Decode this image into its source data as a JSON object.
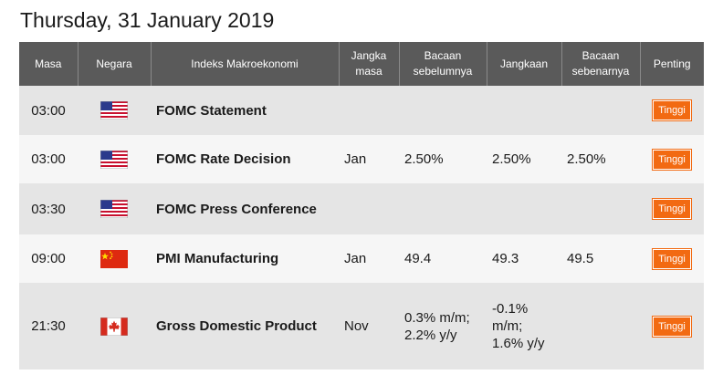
{
  "page": {
    "title": "Thursday, 31 January 2019"
  },
  "table": {
    "headers": {
      "time": "Masa",
      "country": "Negara",
      "event": "Indeks Makroekonomi",
      "period": "Jangka masa",
      "previous": "Bacaan sebelumnya",
      "forecast": "Jangkaan",
      "actual": "Bacaan sebenarnya",
      "importance": "Penting"
    },
    "rows": [
      {
        "time": "03:00",
        "flag": "us-flag-icon",
        "event": "FOMC Statement",
        "period": "",
        "previous": "",
        "forecast": "",
        "actual": "",
        "importance": "Tinggi"
      },
      {
        "time": "03:00",
        "flag": "us-flag-icon",
        "event": "FOMC Rate Decision",
        "period": "Jan",
        "previous": "2.50%",
        "forecast": "2.50%",
        "actual": "2.50%",
        "importance": "Tinggi"
      },
      {
        "time": "03:30",
        "flag": "us-flag-icon",
        "event": "FOMC Press Conference",
        "period": "",
        "previous": "",
        "forecast": "",
        "actual": "",
        "importance": "Tinggi"
      },
      {
        "time": "09:00",
        "flag": "china-flag-icon",
        "event": "PMI Manufacturing",
        "period": "Jan",
        "previous": "49.4",
        "forecast": "49.3",
        "actual": "49.5",
        "importance": "Tinggi"
      },
      {
        "time": "21:30",
        "flag": "canada-flag-icon",
        "event": "Gross Domestic Product",
        "period": "Nov",
        "previous": "0.3% m/m; 2.2% y/y",
        "forecast": "-0.1% m/m; 1.6% y/y",
        "actual": "",
        "importance": "Tinggi"
      }
    ]
  },
  "colors": {
    "header_bg": "#5a5a5a",
    "row_odd": "#e5e5e5",
    "row_even": "#f6f6f6",
    "badge": "#f26a12",
    "actual_better": "#2e8b2e"
  }
}
